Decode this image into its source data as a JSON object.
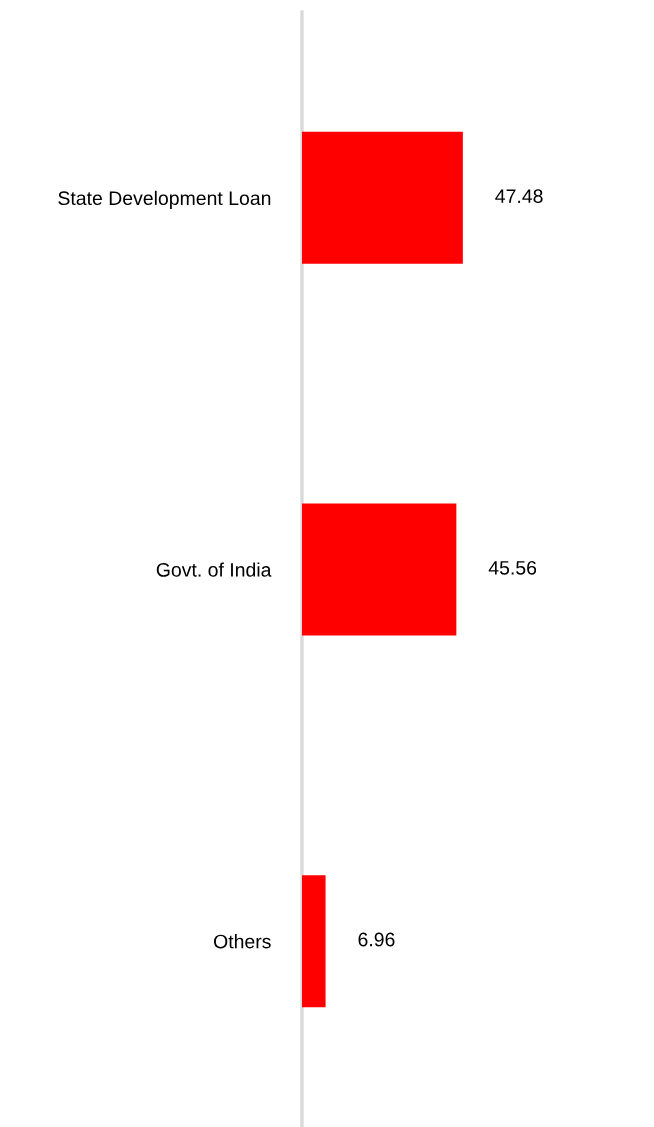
{
  "chart_data": {
    "type": "bar",
    "orientation": "horizontal",
    "categories": [
      "State Development Loan",
      "Govt. of India",
      "Others"
    ],
    "values": [
      47.48,
      45.56,
      6.96
    ],
    "color": "#ff0000",
    "data_labels": true,
    "tick_labels": "y"
  }
}
